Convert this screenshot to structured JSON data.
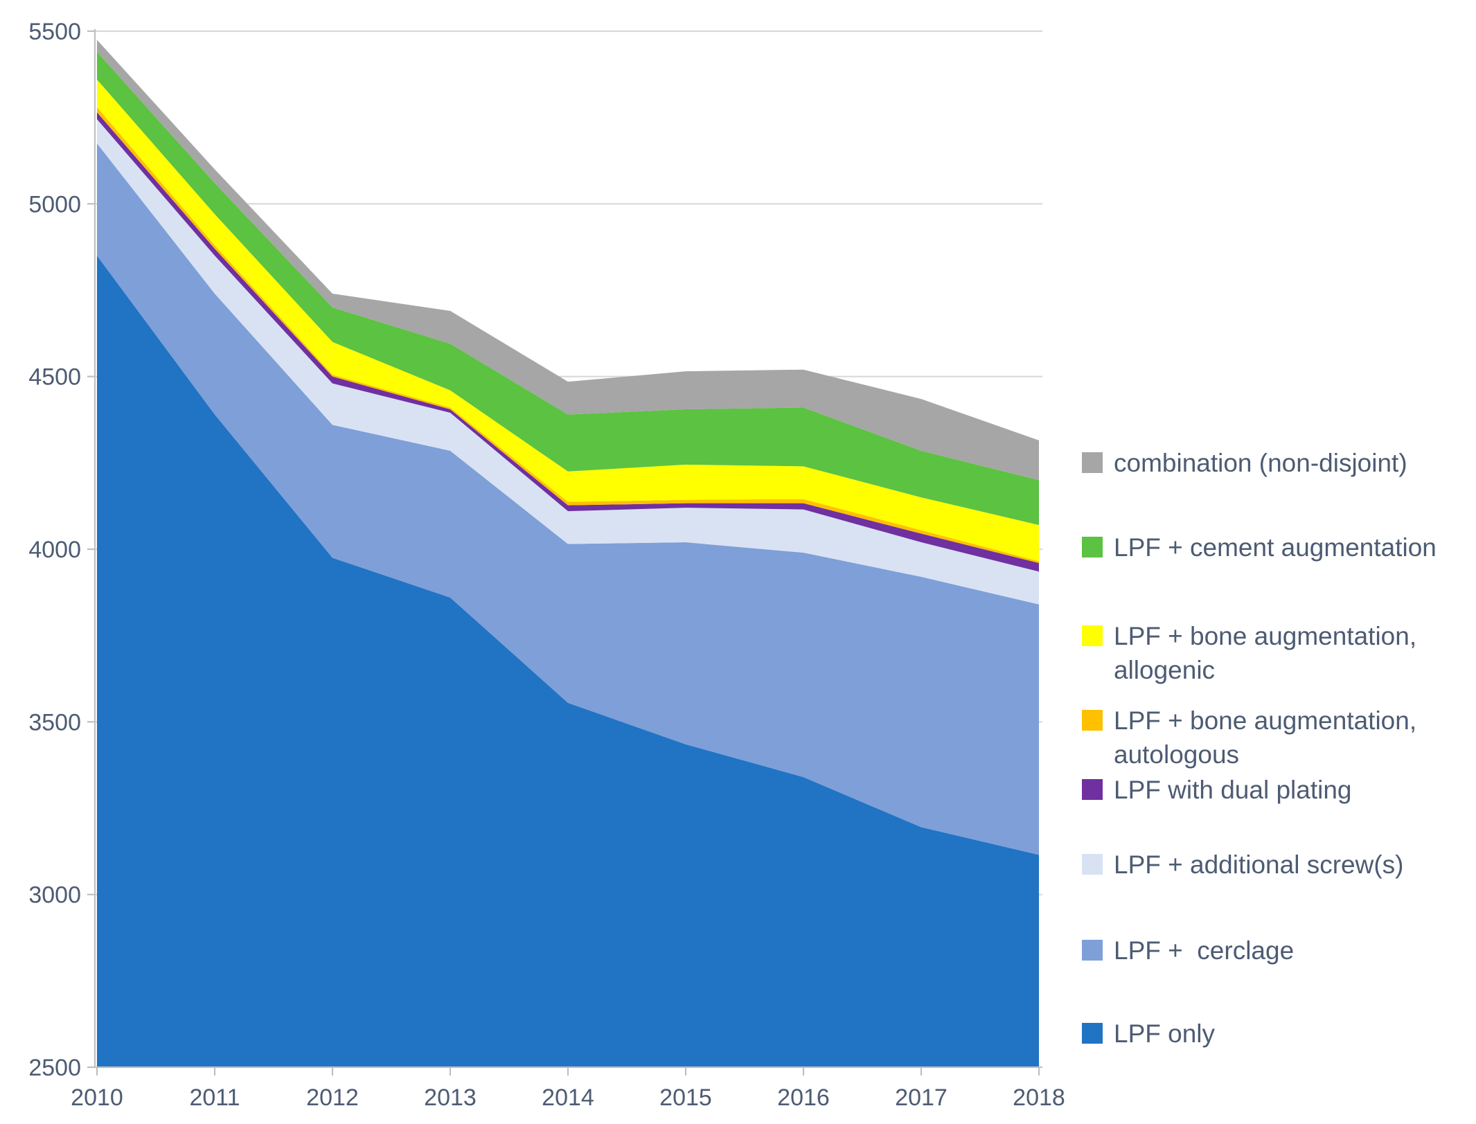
{
  "chart_data": {
    "type": "area",
    "stacked": true,
    "title": "",
    "xlabel": "",
    "ylabel": "",
    "x": [
      2010,
      2011,
      2012,
      2013,
      2014,
      2015,
      2016,
      2017,
      2018
    ],
    "ylim": [
      2500,
      5500
    ],
    "ytick_step": 500,
    "grid": "horizontal",
    "legend_position": "right",
    "series": [
      {
        "name": "LPF only",
        "color": "#2173c4",
        "values": [
          4850,
          4390,
          3975,
          3860,
          3555,
          3435,
          3340,
          3195,
          3115
        ]
      },
      {
        "name": "LPF +  cerclage",
        "color": "#7e9fd8",
        "values": [
          325,
          350,
          385,
          425,
          460,
          585,
          650,
          725,
          725
        ]
      },
      {
        "name": "LPF + additional screw(s)",
        "color": "#d8e2f3",
        "values": [
          70,
          110,
          120,
          110,
          95,
          100,
          125,
          100,
          95
        ]
      },
      {
        "name": "LPF with dual plating",
        "color": "#7030a0",
        "values": [
          20,
          20,
          20,
          10,
          17,
          13,
          18,
          25,
          25
        ]
      },
      {
        "name": "LPF + bone augmentation, autologous",
        "color": "#ffc000",
        "values": [
          15,
          10,
          5,
          5,
          10,
          10,
          12,
          10,
          5
        ]
      },
      {
        "name": "LPF + bone augmentation, allogenic",
        "color": "#ffff00",
        "values": [
          80,
          90,
          95,
          50,
          88,
          102,
          95,
          95,
          105
        ]
      },
      {
        "name": "LPF + cement augmentation",
        "color": "#5cc242",
        "values": [
          80,
          90,
          100,
          135,
          165,
          160,
          170,
          135,
          130
        ]
      },
      {
        "name": "combination (non-disjoint)",
        "color": "#a6a6a6",
        "values": [
          35,
          40,
          40,
          95,
          95,
          110,
          110,
          150,
          115
        ]
      }
    ],
    "y_tick_labels": [
      "2500",
      "3000",
      "3500",
      "4000",
      "4500",
      "5000",
      "5500"
    ],
    "x_tick_labels": [
      "2010",
      "2011",
      "2012",
      "2013",
      "2014",
      "2015",
      "2016",
      "2017",
      "2018"
    ]
  },
  "legend": {
    "items": [
      {
        "key": "combination-non-disjoint",
        "color": "#a6a6a6",
        "lines": [
          "combination (non-disjoint)"
        ]
      },
      {
        "key": "lpf-cement-augmentation",
        "color": "#5cc242",
        "lines": [
          "LPF + cement augmentation"
        ]
      },
      {
        "key": "lpf-bone-augmentation-allogenic",
        "color": "#ffff00",
        "lines": [
          "LPF + bone augmentation,",
          "allogenic"
        ]
      },
      {
        "key": "lpf-bone-augmentation-autologous",
        "color": "#ffc000",
        "lines": [
          "LPF + bone augmentation,",
          "autologous"
        ]
      },
      {
        "key": "lpf-with-dual-plating",
        "color": "#7030a0",
        "lines": [
          "LPF with dual plating"
        ]
      },
      {
        "key": "lpf-additional-screws",
        "color": "#d8e2f3",
        "lines": [
          "LPF + additional screw(s)"
        ]
      },
      {
        "key": "lpf-cerclage",
        "color": "#7e9fd8",
        "lines": [
          "LPF +  cerclage"
        ]
      },
      {
        "key": "lpf-only",
        "color": "#2173c4",
        "lines": [
          "LPF only"
        ]
      }
    ]
  },
  "colors": {
    "gridline": "#d9d9d9",
    "axis_line": "#bfbfbf",
    "tick": "#bfbfbf",
    "axis_text": "#4d5b73",
    "legend_text": "#4d5b73",
    "background": "#ffffff"
  }
}
